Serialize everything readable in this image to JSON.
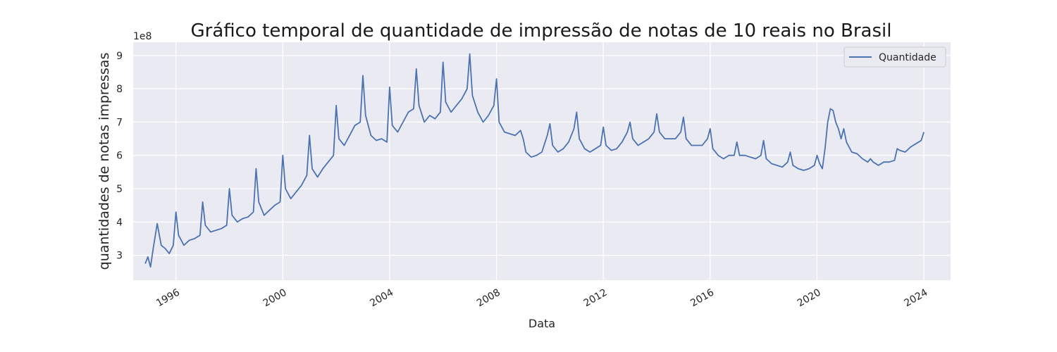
{
  "chart_data": {
    "type": "line",
    "title": "Gráfico temporal de quantidade de impressão de notas de 10 reais no Brasil",
    "xlabel": "Data",
    "ylabel": "quantidades de notas impressas",
    "y_scale_label": "1e8",
    "xlim": [
      1994.4,
      2025.0
    ],
    "ylim": [
      2.25,
      9.4
    ],
    "x_ticks": [
      1996,
      2000,
      2004,
      2008,
      2012,
      2016,
      2020,
      2024
    ],
    "x_tick_labels": [
      "1996",
      "2000",
      "2004",
      "2008",
      "2012",
      "2016",
      "2020",
      "2024"
    ],
    "y_ticks": [
      3,
      4,
      5,
      6,
      7,
      8,
      9
    ],
    "y_tick_labels": [
      "3",
      "4",
      "5",
      "6",
      "7",
      "8",
      "9"
    ],
    "grid": true,
    "legend_position": "top-right",
    "series": [
      {
        "name": "Quantidade",
        "color": "#4c72b0",
        "points": [
          [
            1994.85,
            2.75
          ],
          [
            1994.95,
            2.95
          ],
          [
            1995.05,
            2.65
          ],
          [
            1995.15,
            3.2
          ],
          [
            1995.3,
            3.95
          ],
          [
            1995.45,
            3.3
          ],
          [
            1995.6,
            3.2
          ],
          [
            1995.75,
            3.05
          ],
          [
            1995.9,
            3.3
          ],
          [
            1996.0,
            4.3
          ],
          [
            1996.1,
            3.6
          ],
          [
            1996.3,
            3.3
          ],
          [
            1996.5,
            3.45
          ],
          [
            1996.7,
            3.5
          ],
          [
            1996.9,
            3.6
          ],
          [
            1997.0,
            4.6
          ],
          [
            1997.1,
            3.9
          ],
          [
            1997.3,
            3.7
          ],
          [
            1997.5,
            3.75
          ],
          [
            1997.7,
            3.8
          ],
          [
            1997.9,
            3.9
          ],
          [
            1998.0,
            5.0
          ],
          [
            1998.1,
            4.2
          ],
          [
            1998.3,
            4.0
          ],
          [
            1998.5,
            4.1
          ],
          [
            1998.7,
            4.15
          ],
          [
            1998.9,
            4.3
          ],
          [
            1999.0,
            5.6
          ],
          [
            1999.1,
            4.6
          ],
          [
            1999.3,
            4.2
          ],
          [
            1999.5,
            4.35
          ],
          [
            1999.7,
            4.5
          ],
          [
            1999.9,
            4.6
          ],
          [
            2000.0,
            6.0
          ],
          [
            2000.1,
            5.0
          ],
          [
            2000.3,
            4.7
          ],
          [
            2000.5,
            4.9
          ],
          [
            2000.7,
            5.1
          ],
          [
            2000.9,
            5.4
          ],
          [
            2001.0,
            6.6
          ],
          [
            2001.1,
            5.6
          ],
          [
            2001.3,
            5.35
          ],
          [
            2001.5,
            5.6
          ],
          [
            2001.7,
            5.8
          ],
          [
            2001.9,
            6.0
          ],
          [
            2002.0,
            7.5
          ],
          [
            2002.1,
            6.5
          ],
          [
            2002.3,
            6.3
          ],
          [
            2002.5,
            6.6
          ],
          [
            2002.7,
            6.9
          ],
          [
            2002.9,
            7.0
          ],
          [
            2003.0,
            8.4
          ],
          [
            2003.1,
            7.2
          ],
          [
            2003.3,
            6.6
          ],
          [
            2003.5,
            6.45
          ],
          [
            2003.7,
            6.5
          ],
          [
            2003.9,
            6.4
          ],
          [
            2004.0,
            8.05
          ],
          [
            2004.1,
            6.9
          ],
          [
            2004.3,
            6.7
          ],
          [
            2004.5,
            7.0
          ],
          [
            2004.7,
            7.3
          ],
          [
            2004.9,
            7.4
          ],
          [
            2005.0,
            8.6
          ],
          [
            2005.1,
            7.5
          ],
          [
            2005.3,
            7.0
          ],
          [
            2005.5,
            7.2
          ],
          [
            2005.7,
            7.1
          ],
          [
            2005.9,
            7.3
          ],
          [
            2006.0,
            8.8
          ],
          [
            2006.1,
            7.6
          ],
          [
            2006.3,
            7.3
          ],
          [
            2006.5,
            7.5
          ],
          [
            2006.7,
            7.7
          ],
          [
            2006.9,
            8.0
          ],
          [
            2007.0,
            9.05
          ],
          [
            2007.1,
            7.8
          ],
          [
            2007.3,
            7.3
          ],
          [
            2007.5,
            7.0
          ],
          [
            2007.7,
            7.2
          ],
          [
            2007.9,
            7.5
          ],
          [
            2008.0,
            8.3
          ],
          [
            2008.1,
            7.0
          ],
          [
            2008.3,
            6.7
          ],
          [
            2008.5,
            6.65
          ],
          [
            2008.7,
            6.6
          ],
          [
            2008.9,
            6.75
          ],
          [
            2009.0,
            6.5
          ],
          [
            2009.1,
            6.1
          ],
          [
            2009.3,
            5.95
          ],
          [
            2009.5,
            6.0
          ],
          [
            2009.7,
            6.1
          ],
          [
            2009.9,
            6.6
          ],
          [
            2010.0,
            6.95
          ],
          [
            2010.1,
            6.3
          ],
          [
            2010.3,
            6.1
          ],
          [
            2010.5,
            6.2
          ],
          [
            2010.7,
            6.4
          ],
          [
            2010.9,
            6.8
          ],
          [
            2011.0,
            7.3
          ],
          [
            2011.1,
            6.5
          ],
          [
            2011.3,
            6.2
          ],
          [
            2011.5,
            6.1
          ],
          [
            2011.7,
            6.2
          ],
          [
            2011.9,
            6.3
          ],
          [
            2012.0,
            6.85
          ],
          [
            2012.1,
            6.3
          ],
          [
            2012.3,
            6.15
          ],
          [
            2012.5,
            6.2
          ],
          [
            2012.7,
            6.4
          ],
          [
            2012.9,
            6.7
          ],
          [
            2013.0,
            7.0
          ],
          [
            2013.1,
            6.5
          ],
          [
            2013.3,
            6.3
          ],
          [
            2013.5,
            6.4
          ],
          [
            2013.7,
            6.5
          ],
          [
            2013.9,
            6.7
          ],
          [
            2014.0,
            7.25
          ],
          [
            2014.1,
            6.7
          ],
          [
            2014.3,
            6.5
          ],
          [
            2014.5,
            6.5
          ],
          [
            2014.7,
            6.5
          ],
          [
            2014.9,
            6.7
          ],
          [
            2015.0,
            7.15
          ],
          [
            2015.1,
            6.5
          ],
          [
            2015.3,
            6.3
          ],
          [
            2015.5,
            6.3
          ],
          [
            2015.7,
            6.3
          ],
          [
            2015.9,
            6.5
          ],
          [
            2016.0,
            6.8
          ],
          [
            2016.1,
            6.2
          ],
          [
            2016.3,
            6.0
          ],
          [
            2016.5,
            5.9
          ],
          [
            2016.7,
            6.0
          ],
          [
            2016.9,
            6.0
          ],
          [
            2017.0,
            6.4
          ],
          [
            2017.1,
            6.0
          ],
          [
            2017.3,
            6.0
          ],
          [
            2017.5,
            5.95
          ],
          [
            2017.7,
            5.9
          ],
          [
            2017.9,
            6.0
          ],
          [
            2018.0,
            6.45
          ],
          [
            2018.1,
            5.9
          ],
          [
            2018.3,
            5.75
          ],
          [
            2018.5,
            5.7
          ],
          [
            2018.7,
            5.65
          ],
          [
            2018.9,
            5.8
          ],
          [
            2019.0,
            6.1
          ],
          [
            2019.1,
            5.7
          ],
          [
            2019.3,
            5.6
          ],
          [
            2019.5,
            5.55
          ],
          [
            2019.7,
            5.6
          ],
          [
            2019.9,
            5.7
          ],
          [
            2020.0,
            6.0
          ],
          [
            2020.1,
            5.75
          ],
          [
            2020.2,
            5.6
          ],
          [
            2020.3,
            6.2
          ],
          [
            2020.4,
            7.0
          ],
          [
            2020.5,
            7.4
          ],
          [
            2020.6,
            7.35
          ],
          [
            2020.7,
            7.0
          ],
          [
            2020.8,
            6.8
          ],
          [
            2020.9,
            6.5
          ],
          [
            2021.0,
            6.8
          ],
          [
            2021.1,
            6.4
          ],
          [
            2021.3,
            6.1
          ],
          [
            2021.5,
            6.05
          ],
          [
            2021.7,
            5.9
          ],
          [
            2021.9,
            5.8
          ],
          [
            2022.0,
            5.9
          ],
          [
            2022.1,
            5.8
          ],
          [
            2022.3,
            5.7
          ],
          [
            2022.5,
            5.8
          ],
          [
            2022.7,
            5.8
          ],
          [
            2022.9,
            5.85
          ],
          [
            2023.0,
            6.2
          ],
          [
            2023.1,
            6.15
          ],
          [
            2023.3,
            6.1
          ],
          [
            2023.5,
            6.25
          ],
          [
            2023.7,
            6.35
          ],
          [
            2023.9,
            6.45
          ],
          [
            2024.0,
            6.7
          ]
        ]
      }
    ]
  }
}
